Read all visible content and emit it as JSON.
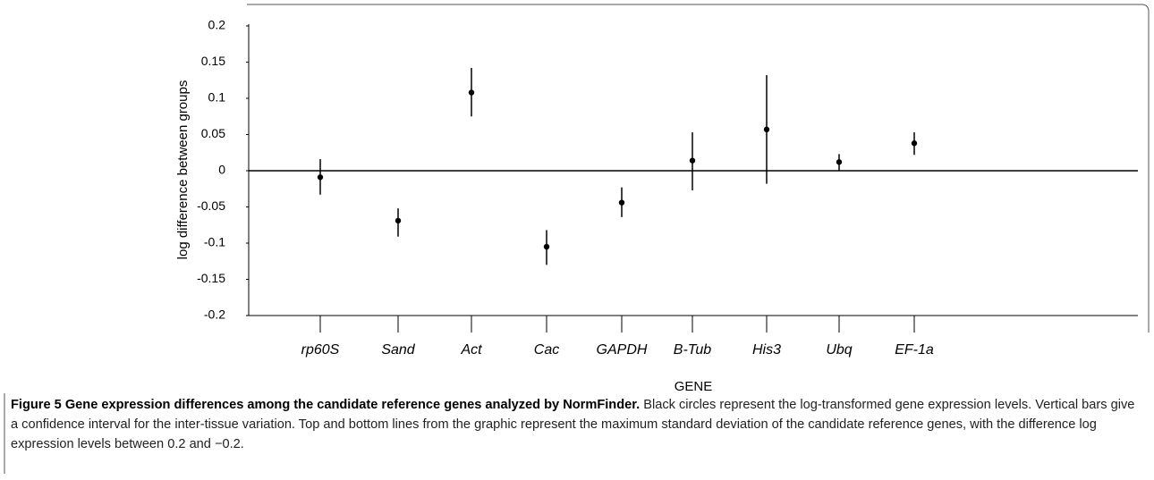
{
  "chart_data": {
    "type": "errorpoint",
    "xlabel": "GENE",
    "ylabel": "log difference between groups",
    "categories": [
      "rp60S",
      "Sand",
      "Act",
      "Cac",
      "GAPDH",
      "B-Tub",
      "His3",
      "Ubq",
      "EF-1a"
    ],
    "values": [
      -0.009,
      -0.069,
      0.108,
      -0.105,
      -0.044,
      0.014,
      0.057,
      0.012,
      0.038
    ],
    "lower": [
      -0.033,
      -0.091,
      0.075,
      -0.13,
      -0.064,
      -0.027,
      -0.018,
      0.0,
      0.022
    ],
    "upper": [
      0.016,
      -0.052,
      0.142,
      -0.082,
      -0.023,
      0.053,
      0.132,
      0.023,
      0.053
    ],
    "color": "#000000",
    "reference_line": 0,
    "ylim": [
      -0.2,
      0.2
    ],
    "yticks": [
      0.2,
      0.15,
      0.1,
      0.05,
      0,
      -0.05,
      -0.1,
      -0.15,
      -0.2
    ]
  },
  "caption": {
    "label": "Figure 5",
    "title": "Gene expression differences among the candidate reference genes analyzed by NormFinder.",
    "text": "Black circles represent the log-transformed gene expression levels. Vertical bars give a confidence interval for the inter-tissue variation. Top and bottom lines from the graphic represent the maximum standard deviation of the candidate reference genes, with the difference log expression levels between 0.2 and −0.2."
  }
}
